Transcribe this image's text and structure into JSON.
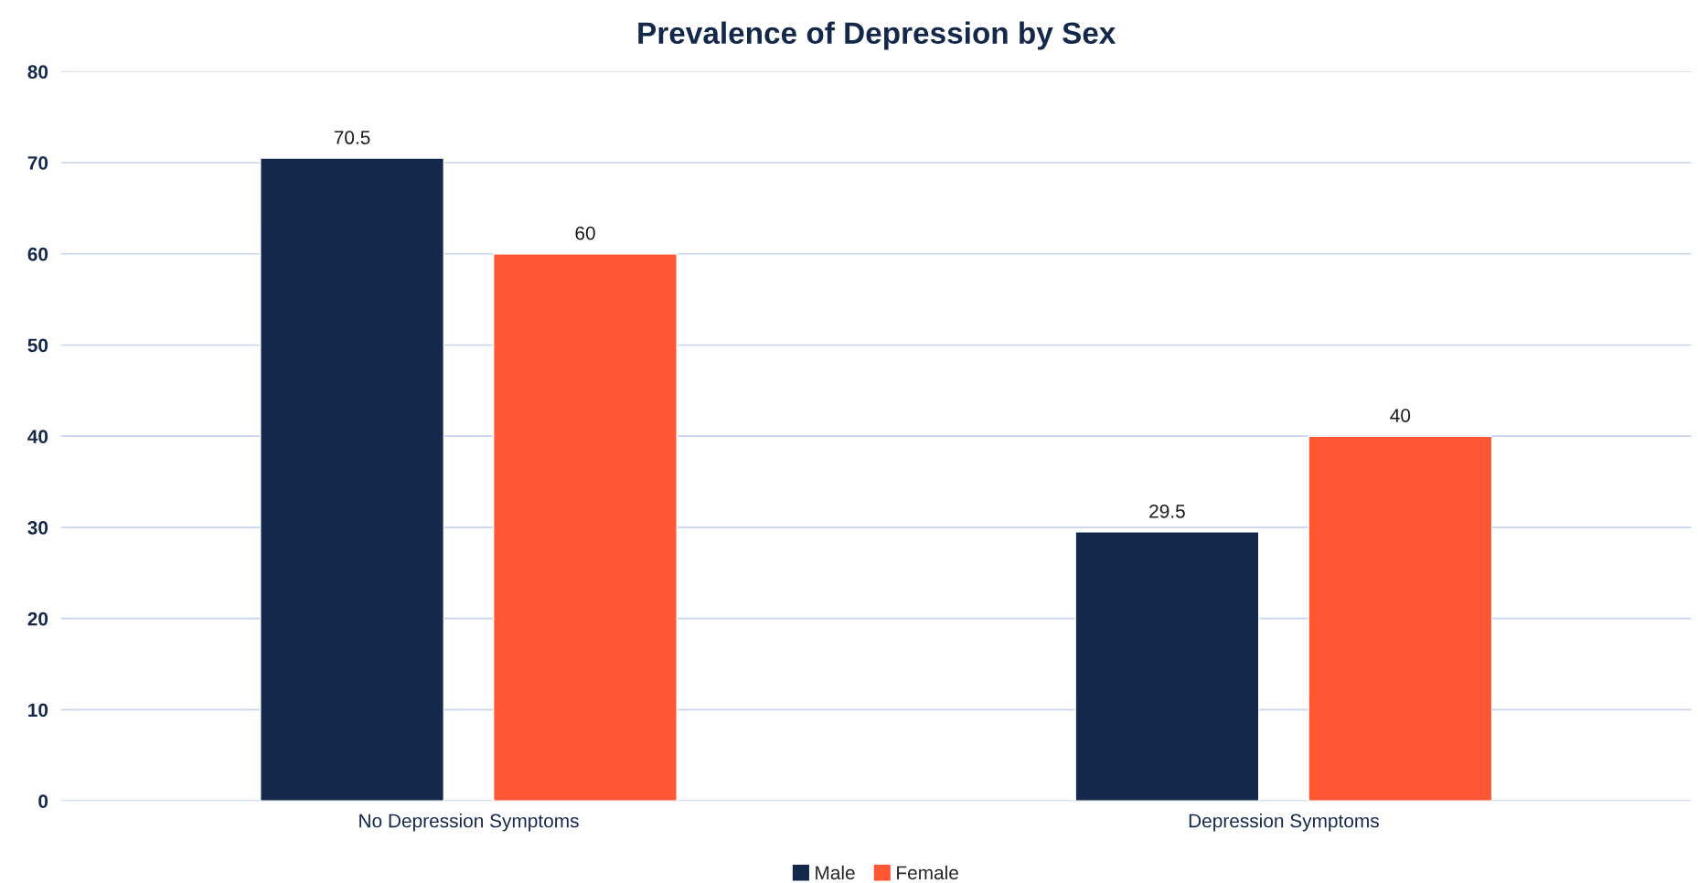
{
  "chart_data": {
    "type": "bar",
    "title": "Prevalence of Depression by Sex",
    "categories": [
      "No Depression Symptoms",
      "Depression Symptoms"
    ],
    "series": [
      {
        "name": "Male",
        "color": "#14284b",
        "values": [
          70.5,
          29.5
        ]
      },
      {
        "name": "Female",
        "color": "#ff5733",
        "values": [
          60,
          40
        ]
      }
    ],
    "ylim": [
      0,
      80
    ],
    "yticks": [
      0,
      10,
      20,
      30,
      40,
      50,
      60,
      70,
      80
    ],
    "grid": "y",
    "legend": "bottom",
    "data_labels": true
  }
}
